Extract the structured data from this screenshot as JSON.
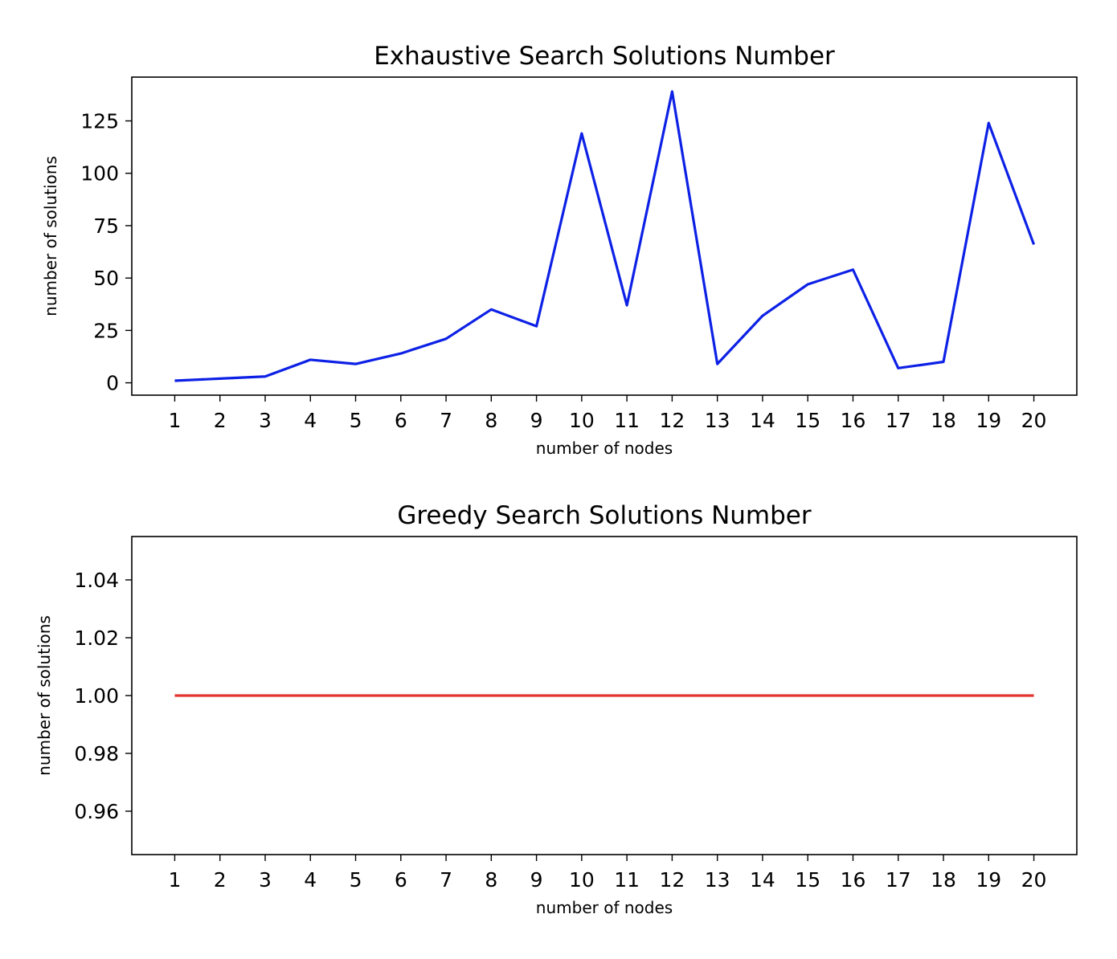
{
  "chart_data": [
    {
      "type": "line",
      "title": "Exhaustive Search Solutions Number",
      "xlabel": "number of nodes",
      "ylabel": "number of solutions",
      "x": [
        1,
        2,
        3,
        4,
        5,
        6,
        7,
        8,
        9,
        10,
        11,
        12,
        13,
        14,
        15,
        16,
        17,
        18,
        19,
        20
      ],
      "series": [
        {
          "values": [
            1,
            2,
            3,
            11,
            9,
            14,
            21,
            35,
            27,
            119,
            37,
            139,
            9,
            32,
            47,
            54,
            7,
            10,
            124,
            66
          ],
          "color": "#0d21e6"
        }
      ],
      "xticks": [
        "1",
        "2",
        "3",
        "4",
        "5",
        "6",
        "7",
        "8",
        "9",
        "10",
        "11",
        "12",
        "13",
        "14",
        "15",
        "16",
        "17",
        "18",
        "19",
        "20"
      ],
      "yticks": [
        0,
        25,
        50,
        75,
        100,
        125
      ],
      "ytick_labels": [
        "0",
        "25",
        "50",
        "75",
        "100",
        "125"
      ],
      "xlim": [
        0.05,
        20.95
      ],
      "ylim": [
        -5.9,
        145.9
      ],
      "grid": false,
      "legend": false
    },
    {
      "type": "line",
      "title": "Greedy Search Solutions Number",
      "xlabel": "number of nodes",
      "ylabel": "number of solutions",
      "x": [
        1,
        2,
        3,
        4,
        5,
        6,
        7,
        8,
        9,
        10,
        11,
        12,
        13,
        14,
        15,
        16,
        17,
        18,
        19,
        20
      ],
      "series": [
        {
          "values": [
            1,
            1,
            1,
            1,
            1,
            1,
            1,
            1,
            1,
            1,
            1,
            1,
            1,
            1,
            1,
            1,
            1,
            1,
            1,
            1
          ],
          "color": "#e3342f"
        }
      ],
      "xticks": [
        "1",
        "2",
        "3",
        "4",
        "5",
        "6",
        "7",
        "8",
        "9",
        "10",
        "11",
        "12",
        "13",
        "14",
        "15",
        "16",
        "17",
        "18",
        "19",
        "20"
      ],
      "yticks": [
        0.96,
        0.98,
        1.0,
        1.02,
        1.04
      ],
      "ytick_labels": [
        "0.96",
        "0.98",
        "1.00",
        "1.02",
        "1.04"
      ],
      "xlim": [
        0.05,
        20.95
      ],
      "ylim": [
        0.945,
        1.055
      ],
      "grid": false,
      "legend": false
    }
  ]
}
